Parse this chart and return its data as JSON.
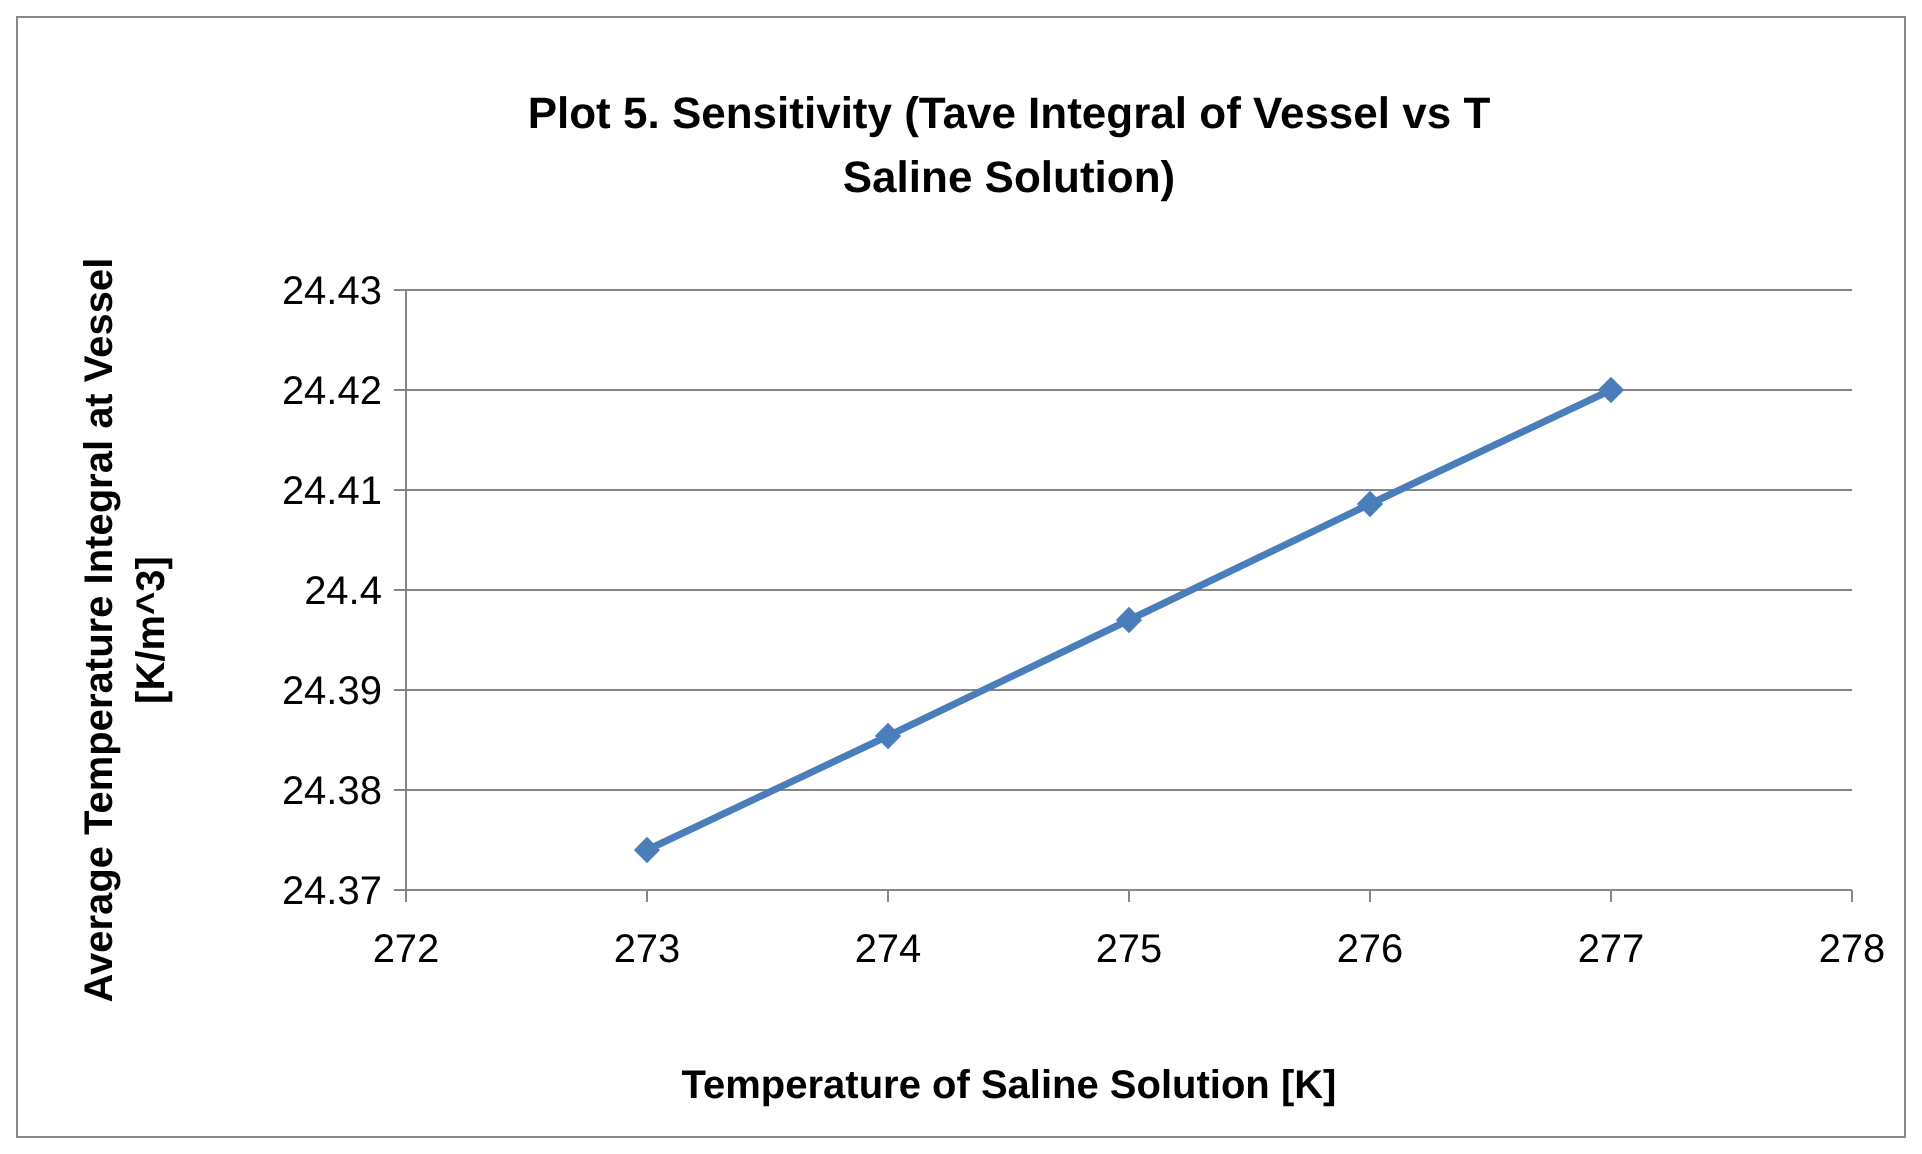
{
  "chart_data": {
    "type": "line",
    "title": "Plot 5. Sensitivity (Tave Integral of Vessel vs T Saline Solution)",
    "xlabel": "Temperature of Saline Solution [K]",
    "ylabel": "Average Temperature Integral at Vessel [K/m^3]",
    "x": [
      273,
      274,
      275,
      276,
      277
    ],
    "series": [
      {
        "color": "#4a7ebb",
        "values": [
          24.374,
          24.3854,
          24.397,
          24.4086,
          24.42
        ]
      }
    ],
    "xlim": [
      272,
      278
    ],
    "xticks": [
      272,
      273,
      274,
      275,
      276,
      277,
      278
    ],
    "ylim": [
      24.37,
      24.43
    ],
    "yticks": [
      24.37,
      24.38,
      24.39,
      24.4,
      24.41,
      24.42,
      24.43
    ],
    "grid": "y",
    "marker": "diamond",
    "line_style": "solid"
  }
}
